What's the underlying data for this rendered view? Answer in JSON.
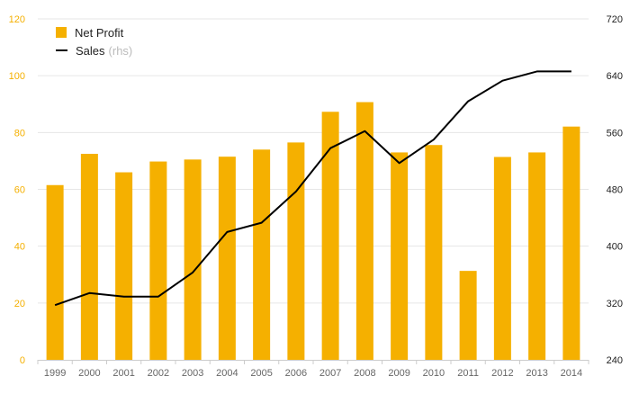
{
  "chart_data": {
    "type": "bar",
    "categories": [
      "1999",
      "2000",
      "2001",
      "2002",
      "2003",
      "2004",
      "2005",
      "2006",
      "2007",
      "2008",
      "2009",
      "2010",
      "2011",
      "2012",
      "2013",
      "2014"
    ],
    "series": [
      {
        "name": "Net Profit",
        "type": "bar",
        "axis": "left",
        "color": "#f5b000",
        "values": [
          61.5,
          72.5,
          66,
          69.8,
          70.5,
          71.5,
          74,
          76.5,
          87.3,
          90.7,
          73,
          75.6,
          31.3,
          71.4,
          73,
          82.1
        ]
      },
      {
        "name": "Sales",
        "name_note": "(rhs)",
        "type": "line",
        "axis": "right",
        "color": "#000000",
        "values": [
          317,
          334,
          329,
          329,
          363,
          420,
          433,
          477,
          538,
          562,
          517,
          550,
          604,
          633,
          646,
          646
        ]
      }
    ],
    "yaxis_left": {
      "ylim": [
        0,
        120
      ],
      "ticks": [
        "0",
        "20",
        "40",
        "60",
        "80",
        "100",
        "120"
      ],
      "tick_color": "#f5b000"
    },
    "yaxis_right": {
      "ylim": [
        240,
        720
      ],
      "ticks": [
        "240",
        "320",
        "400",
        "480",
        "560",
        "640",
        "720"
      ],
      "tick_color": "#222222"
    },
    "grid": true,
    "legend_position": "top-left",
    "title": "",
    "xlabel": "",
    "ylabel": ""
  }
}
